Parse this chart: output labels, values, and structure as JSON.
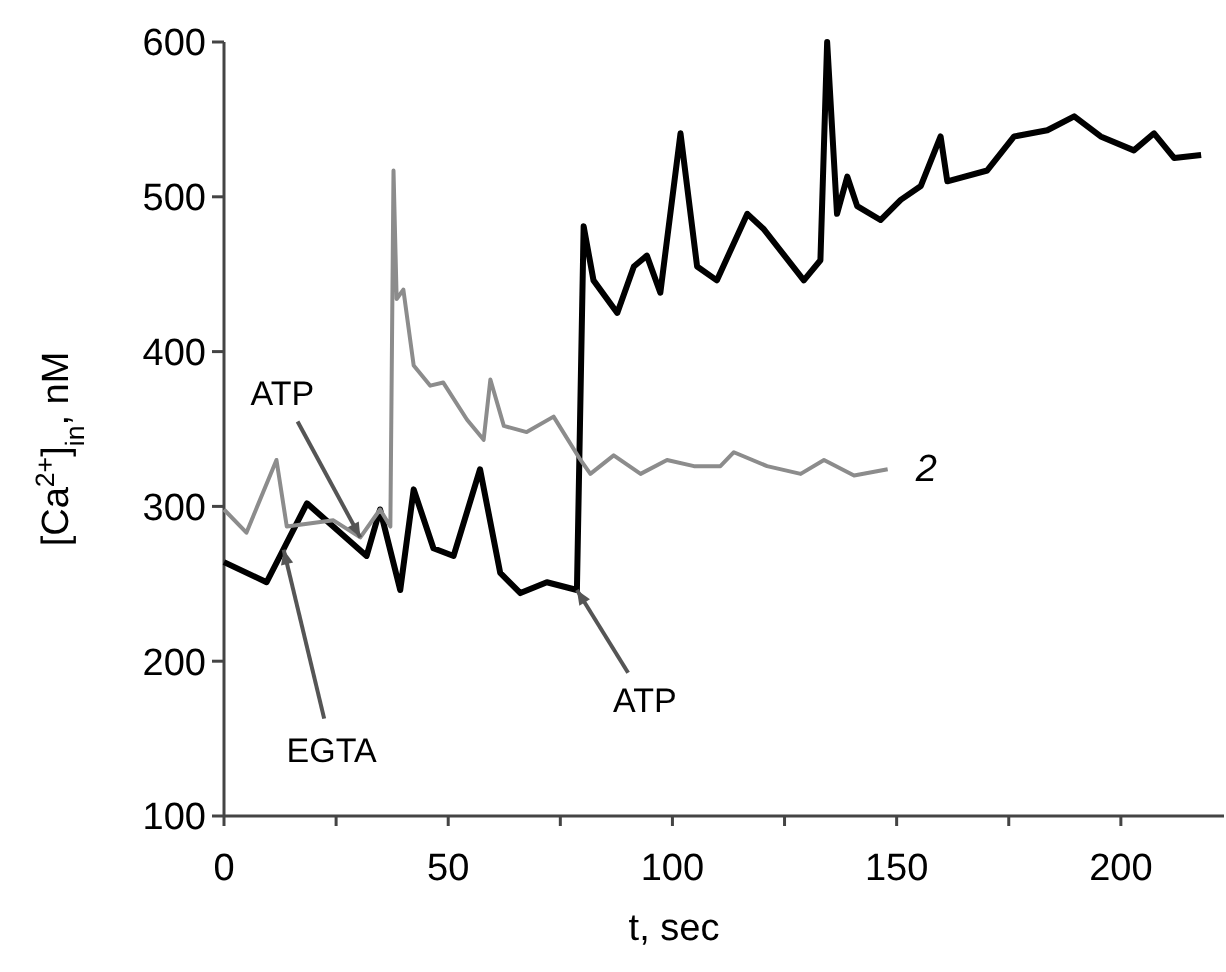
{
  "chart_data": {
    "type": "line",
    "xlabel": "t, sec",
    "ylabel": "[Ca$^{2+}$]$_{in}$, nM",
    "xlim": [
      0,
      223
    ],
    "ylim": [
      100,
      600
    ],
    "xticks": [
      0,
      {
        "value": 25,
        "label": null
      },
      50,
      {
        "value": 75,
        "label": null
      },
      100,
      {
        "value": 125,
        "label": null
      },
      150,
      {
        "value": 175,
        "label": null
      },
      200
    ],
    "yticks": [
      100,
      200,
      300,
      400,
      500,
      600
    ],
    "grid": false,
    "marker": "none",
    "line_style": "solid",
    "series": [
      {
        "color": "#000000",
        "x": [
          0,
          9.5,
          18.5,
          31.8,
          34.8,
          39.3,
          42.3,
          46.7,
          51.2,
          57.1,
          61.6,
          66.1,
          72,
          78.7,
          80.2,
          82.4,
          87.7,
          91.4,
          94.3,
          97.3,
          101.8,
          105.5,
          109.9,
          116.7,
          120.4,
          129.3,
          133,
          134.5,
          136.7,
          139,
          141.2,
          146.4,
          150.9,
          155.4,
          159.8,
          161.3,
          170.2,
          176.2,
          183.6,
          189.6,
          195.5,
          202.9,
          207.4,
          211.9,
          217.9
        ],
        "values": [
          264,
          251,
          302,
          268,
          298,
          246,
          311,
          273,
          268,
          324,
          257,
          244,
          251,
          246,
          481,
          446,
          425,
          455,
          462,
          438,
          541,
          455,
          446,
          489,
          479,
          446,
          459,
          600,
          489,
          513,
          494,
          485,
          498,
          507,
          539,
          510,
          517,
          539,
          543,
          552,
          539,
          530,
          541,
          525,
          527
        ]
      },
      {
        "name": "2",
        "color": "#8c8c8c",
        "x": [
          0,
          5,
          11.7,
          14,
          24.4,
          30.4,
          34.8,
          37.1,
          37.8,
          38.5,
          40,
          42.3,
          46,
          48.9,
          54.2,
          57.9,
          59.4,
          62.4,
          67.5,
          73.5,
          79.5,
          81.7,
          86.9,
          92.9,
          98.8,
          104.8,
          110.7,
          113.7,
          121.1,
          128.6,
          133.8,
          140.5,
          148
        ],
        "values": [
          298,
          283,
          330,
          287,
          291,
          280,
          298,
          287,
          517,
          434,
          440,
          391,
          378,
          380,
          356,
          343,
          382,
          352,
          348,
          358,
          330,
          321,
          333,
          321,
          330,
          326,
          326,
          335,
          326,
          321,
          330,
          320,
          324
        ]
      }
    ],
    "annotations": [
      {
        "text": "ATP",
        "x": 30.4,
        "y": 280
      },
      {
        "text": "EGTA",
        "x": 13.3,
        "y": 272
      },
      {
        "text": "ATP",
        "x": 78.7,
        "y": 246
      }
    ]
  }
}
